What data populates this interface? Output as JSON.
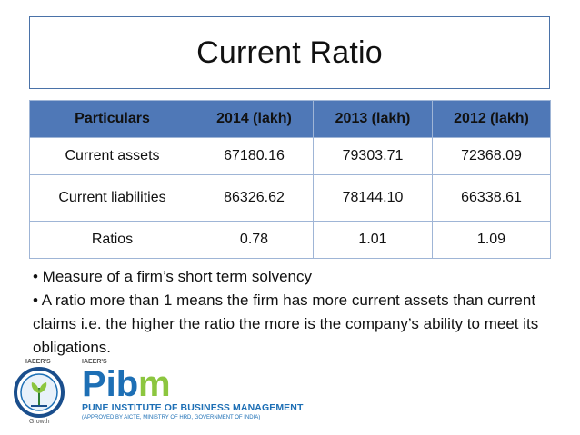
{
  "title": "Current Ratio",
  "table": {
    "headers": [
      "Particulars",
      "2014 (lakh)",
      "2013 (lakh)",
      "2012 (lakh)"
    ],
    "rows": [
      [
        "Current assets",
        "67180.16",
        "79303.71",
        "72368.09"
      ],
      [
        "Current liabilities",
        "86326.62",
        "78144.10",
        "66338.61"
      ],
      [
        "Ratios",
        "0.78",
        "1.01",
        "1.09"
      ]
    ]
  },
  "bullets": [
    "• Measure of a firm’s short term solvency",
    "• A ratio more than 1 means the firm has more current assets than current claims i.e. the higher the ratio the more is the company’s ability to meet its obligations."
  ],
  "logo": {
    "top_label_left": "IAEER'S",
    "top_label_right": "IAEER'S",
    "emblem_caption": "Growth",
    "wordmark_pib": "Pib",
    "wordmark_m": "m",
    "institute_name": "PUNE INSTITUTE OF BUSINESS MANAGEMENT",
    "approval": "(APPROVED BY AICTE, MINISTRY OF HRD, GOVERNMENT OF INDIA)",
    "colors": {
      "blue": "#1d6fb5",
      "green": "#8cc63f",
      "navy": "#1a4e8c"
    }
  }
}
